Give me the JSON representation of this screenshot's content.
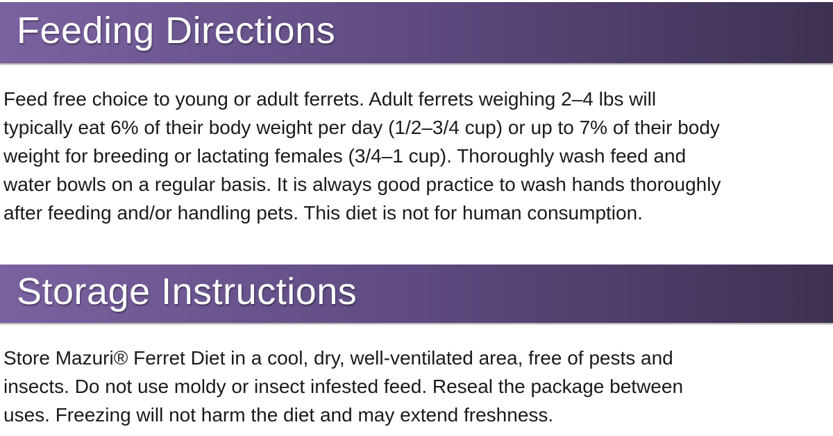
{
  "feeding": {
    "title": "Feeding Directions",
    "lines": [
      "Feed free choice to young or adult ferrets. Adult ferrets weighing 2–4 lbs will",
      "typically eat 6% of their body weight per day (1/2–3/4 cup) or up to 7% of their body",
      "weight for breeding or lactating females (3/4–1 cup). Thoroughly wash feed and",
      "water bowls on a regular basis. It is always good practice to wash hands thoroughly",
      "after feeding and/or handling pets. This diet is not for human consumption."
    ]
  },
  "storage": {
    "title": "Storage Instructions",
    "lines": [
      "Store Mazuri® Ferret Diet in a cool, dry, well-ventilated area, free of pests and",
      "insects. Do not use moldy or insect infested feed. Reseal the package between",
      "uses. Freezing will not harm the diet and may extend freshness."
    ]
  },
  "colors": {
    "header_left": "#7a62a0",
    "header_right": "#3e3152",
    "header_text": "#ffffff"
  }
}
